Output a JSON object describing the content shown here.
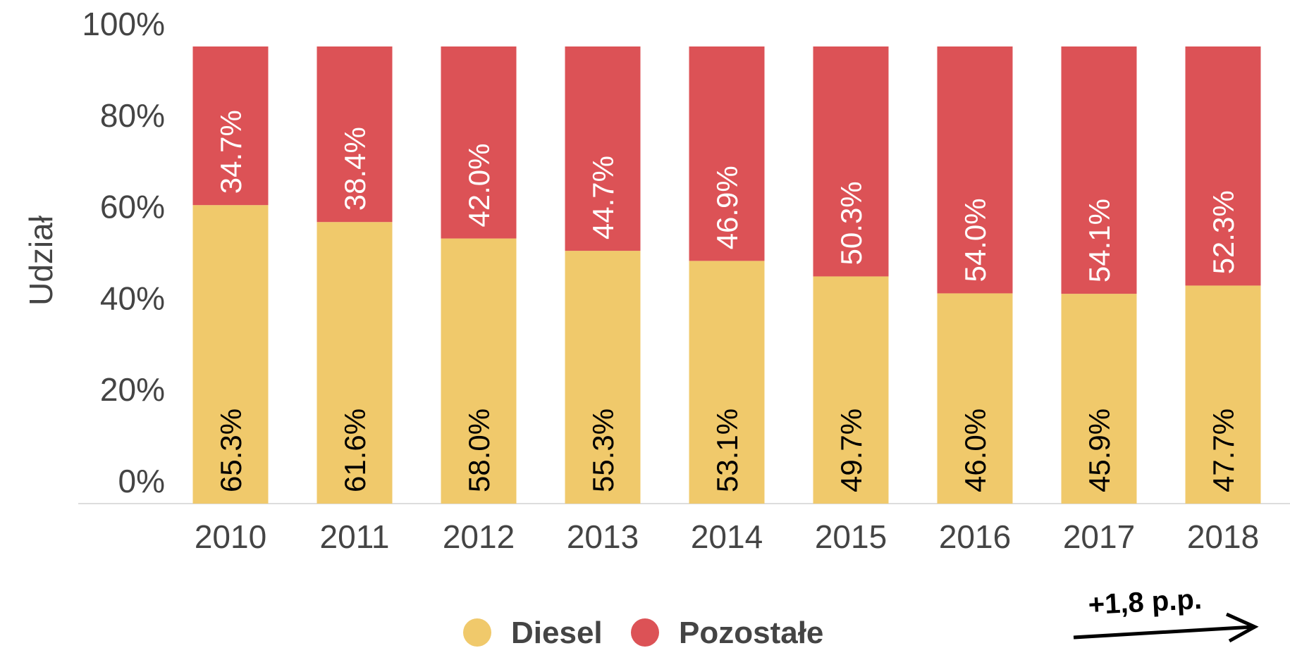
{
  "chart_data": {
    "type": "stacked_bar",
    "y_label": "Udział",
    "categories": [
      "2010",
      "2011",
      "2012",
      "2013",
      "2014",
      "2015",
      "2016",
      "2017",
      "2018"
    ],
    "series": [
      {
        "name": "Diesel",
        "color": "#f0c96b",
        "values": [
          65.3,
          61.6,
          58.0,
          55.3,
          53.1,
          49.7,
          46.0,
          45.9,
          47.7
        ],
        "value_labels": [
          "65.3%",
          "61.6%",
          "58.0%",
          "55.3%",
          "53.1%",
          "49.7%",
          "46.0%",
          "45.9%",
          "47.7%"
        ]
      },
      {
        "name": "Pozostałe",
        "color": "#dc5256",
        "values": [
          34.7,
          38.4,
          42.0,
          44.7,
          46.9,
          50.3,
          54.0,
          54.1,
          52.3
        ],
        "value_labels": [
          "34.7%",
          "38.4%",
          "42.0%",
          "44.7%",
          "46.9%",
          "50.3%",
          "54.0%",
          "54.1%",
          "52.3%"
        ]
      }
    ],
    "ylim": [
      0,
      100
    ],
    "yticks": [
      {
        "value": 0,
        "label": "0%"
      },
      {
        "value": 20,
        "label": "20%"
      },
      {
        "value": 40,
        "label": "40%"
      },
      {
        "value": 60,
        "label": "60%"
      },
      {
        "value": 80,
        "label": "80%"
      },
      {
        "value": 100,
        "label": "100%"
      }
    ],
    "annotation": "+1,8 p.p.",
    "legend": "bottom"
  }
}
